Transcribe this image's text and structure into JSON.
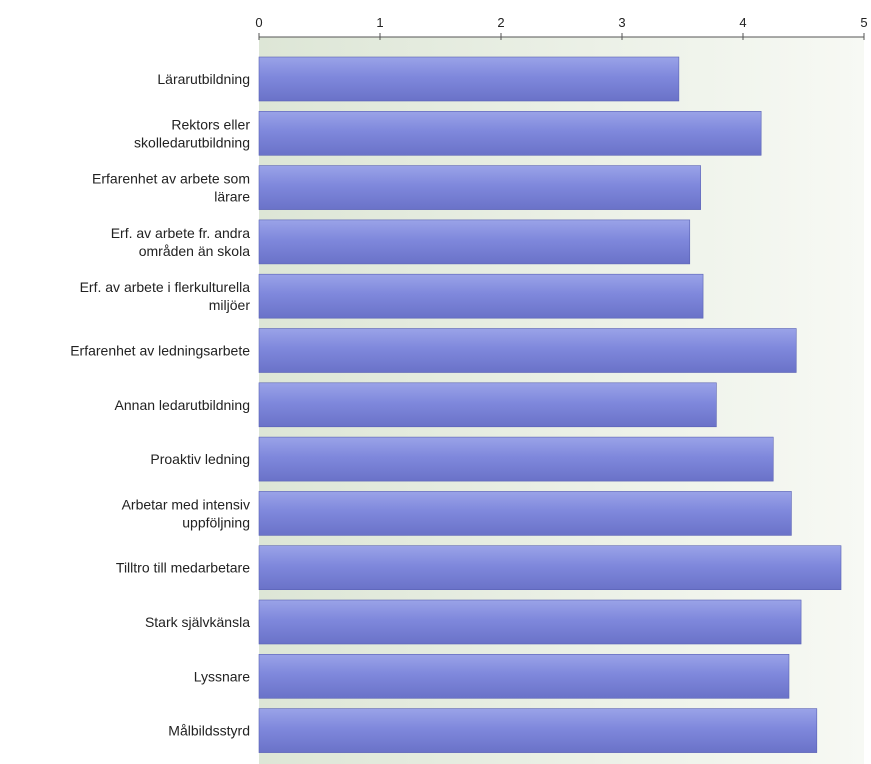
{
  "chart_data": {
    "type": "bar",
    "orientation": "horizontal",
    "categories": [
      [
        "Lärarutbildning"
      ],
      [
        "Rektors eller",
        "skolledarutbildning"
      ],
      [
        "Erfarenhet av arbete som",
        "lärare"
      ],
      [
        "Erf. av arbete fr. andra",
        "områden än skola"
      ],
      [
        "Erf. av arbete i flerkulturella",
        "miljöer"
      ],
      [
        "Erfarenhet av ledningsarbete"
      ],
      [
        "Annan ledarutbildning"
      ],
      [
        "Proaktiv ledning"
      ],
      [
        "Arbetar med intensiv",
        "uppföljning"
      ],
      [
        "Tilltro till medarbetare"
      ],
      [
        "Stark självkänsla"
      ],
      [
        "Lyssnare"
      ],
      [
        "Målbildsstyrd"
      ]
    ],
    "values": [
      3.47,
      4.15,
      3.65,
      3.56,
      3.67,
      4.44,
      3.78,
      4.25,
      4.4,
      4.81,
      4.48,
      4.38,
      4.61
    ],
    "xlim": [
      0,
      5
    ],
    "xticks": [
      "0",
      "1",
      "2",
      "3",
      "4",
      "5"
    ],
    "grid": false,
    "legend": "none",
    "colors": {
      "bar_top": "#9aa3e8",
      "bar_mid": "#7f88dc",
      "bar_bottom": "#6a72c8",
      "bar_edge": "#5a62b4",
      "plot_bg_left": "#dde6d6",
      "plot_bg_right": "#f7f9f4",
      "axis": "#555555"
    }
  }
}
